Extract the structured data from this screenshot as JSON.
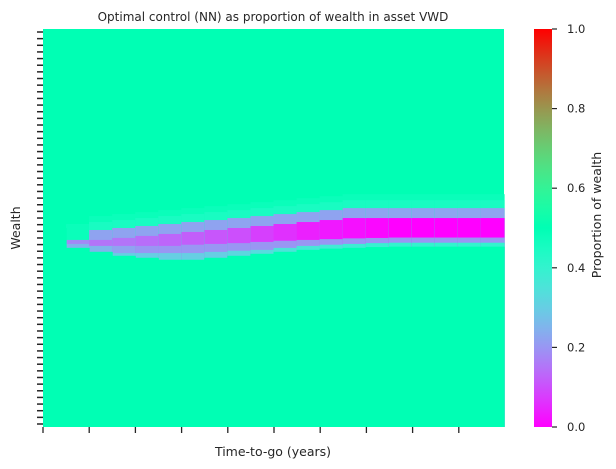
{
  "chart_data": {
    "type": "heatmap",
    "title": "Optimal control (NN) as proportion of wealth in asset VWD",
    "xlabel": "Time-to-go (years)",
    "ylabel": "Wealth",
    "colorbar": {
      "label": "Proportion of wealth",
      "range": [
        0,
        1
      ],
      "ticks": [
        "0.0",
        "0.2",
        "0.4",
        "0.6",
        "0.8",
        "1.0"
      ],
      "colormap": "rainbow"
    },
    "background_value": 0.5,
    "x_tick_count": 11,
    "y_tick_count": 60,
    "columns": [
      {
        "bands": [
          [
            0.5,
            0.5
          ]
        ]
      },
      {
        "bands": [
          [
            0.51,
            0.48
          ],
          [
            0.47,
            0.18
          ],
          [
            0.46,
            0.25
          ],
          [
            0.45,
            0.47
          ]
        ]
      },
      {
        "bands": [
          [
            0.53,
            0.48
          ],
          [
            0.515,
            0.45
          ],
          [
            0.495,
            0.22
          ],
          [
            0.47,
            0.15
          ],
          [
            0.455,
            0.25
          ],
          [
            0.44,
            0.47
          ]
        ]
      },
      {
        "bands": [
          [
            0.535,
            0.48
          ],
          [
            0.52,
            0.45
          ],
          [
            0.5,
            0.22
          ],
          [
            0.475,
            0.15
          ],
          [
            0.455,
            0.22
          ],
          [
            0.437,
            0.3
          ],
          [
            0.43,
            0.47
          ]
        ]
      },
      {
        "bands": [
          [
            0.54,
            0.48
          ],
          [
            0.525,
            0.45
          ],
          [
            0.505,
            0.22
          ],
          [
            0.48,
            0.14
          ],
          [
            0.455,
            0.2
          ],
          [
            0.437,
            0.3
          ],
          [
            0.425,
            0.47
          ]
        ]
      },
      {
        "bands": [
          [
            0.545,
            0.48
          ],
          [
            0.53,
            0.45
          ],
          [
            0.51,
            0.22
          ],
          [
            0.485,
            0.13
          ],
          [
            0.455,
            0.2
          ],
          [
            0.437,
            0.3
          ],
          [
            0.42,
            0.47
          ]
        ]
      },
      {
        "bands": [
          [
            0.55,
            0.48
          ],
          [
            0.535,
            0.45
          ],
          [
            0.515,
            0.22
          ],
          [
            0.49,
            0.12
          ],
          [
            0.458,
            0.2
          ],
          [
            0.437,
            0.3
          ],
          [
            0.42,
            0.47
          ]
        ]
      },
      {
        "bands": [
          [
            0.555,
            0.48
          ],
          [
            0.54,
            0.45
          ],
          [
            0.52,
            0.22
          ],
          [
            0.495,
            0.11
          ],
          [
            0.46,
            0.2
          ],
          [
            0.44,
            0.3
          ],
          [
            0.425,
            0.47
          ]
        ]
      },
      {
        "bands": [
          [
            0.56,
            0.48
          ],
          [
            0.545,
            0.45
          ],
          [
            0.525,
            0.22
          ],
          [
            0.5,
            0.1
          ],
          [
            0.462,
            0.2
          ],
          [
            0.443,
            0.32
          ],
          [
            0.43,
            0.47
          ]
        ]
      },
      {
        "bands": [
          [
            0.565,
            0.48
          ],
          [
            0.55,
            0.45
          ],
          [
            0.53,
            0.22
          ],
          [
            0.505,
            0.08
          ],
          [
            0.465,
            0.2
          ],
          [
            0.445,
            0.33
          ],
          [
            0.435,
            0.47
          ]
        ]
      },
      {
        "bands": [
          [
            0.57,
            0.48
          ],
          [
            0.555,
            0.45
          ],
          [
            0.535,
            0.22
          ],
          [
            0.51,
            0.06
          ],
          [
            0.468,
            0.2
          ],
          [
            0.45,
            0.35
          ],
          [
            0.44,
            0.47
          ]
        ]
      },
      {
        "bands": [
          [
            0.575,
            0.48
          ],
          [
            0.56,
            0.45
          ],
          [
            0.54,
            0.22
          ],
          [
            0.515,
            0.04
          ],
          [
            0.47,
            0.2
          ],
          [
            0.455,
            0.36
          ],
          [
            0.445,
            0.47
          ]
        ]
      },
      {
        "bands": [
          [
            0.58,
            0.48
          ],
          [
            0.565,
            0.45
          ],
          [
            0.545,
            0.22
          ],
          [
            0.52,
            0.03
          ],
          [
            0.472,
            0.2
          ],
          [
            0.458,
            0.37
          ],
          [
            0.448,
            0.47
          ]
        ]
      },
      {
        "bands": [
          [
            0.585,
            0.48
          ],
          [
            0.57,
            0.45
          ],
          [
            0.55,
            0.22
          ],
          [
            0.525,
            0.02
          ],
          [
            0.474,
            0.2
          ],
          [
            0.46,
            0.38
          ],
          [
            0.45,
            0.47
          ]
        ]
      },
      {
        "bands": [
          [
            0.585,
            0.48
          ],
          [
            0.57,
            0.45
          ],
          [
            0.55,
            0.22
          ],
          [
            0.525,
            0.01
          ],
          [
            0.475,
            0.2
          ],
          [
            0.462,
            0.39
          ],
          [
            0.452,
            0.47
          ]
        ]
      },
      {
        "bands": [
          [
            0.585,
            0.48
          ],
          [
            0.57,
            0.45
          ],
          [
            0.55,
            0.22
          ],
          [
            0.525,
            0.0
          ],
          [
            0.476,
            0.2
          ],
          [
            0.463,
            0.4
          ],
          [
            0.453,
            0.47
          ]
        ]
      },
      {
        "bands": [
          [
            0.585,
            0.48
          ],
          [
            0.57,
            0.45
          ],
          [
            0.55,
            0.22
          ],
          [
            0.525,
            0.0
          ],
          [
            0.476,
            0.2
          ],
          [
            0.463,
            0.4
          ],
          [
            0.453,
            0.47
          ]
        ]
      },
      {
        "bands": [
          [
            0.585,
            0.48
          ],
          [
            0.57,
            0.45
          ],
          [
            0.55,
            0.22
          ],
          [
            0.525,
            0.0
          ],
          [
            0.476,
            0.2
          ],
          [
            0.463,
            0.4
          ],
          [
            0.453,
            0.47
          ]
        ]
      },
      {
        "bands": [
          [
            0.585,
            0.48
          ],
          [
            0.57,
            0.45
          ],
          [
            0.55,
            0.22
          ],
          [
            0.525,
            0.0
          ],
          [
            0.476,
            0.2
          ],
          [
            0.463,
            0.4
          ],
          [
            0.453,
            0.47
          ]
        ]
      },
      {
        "bands": [
          [
            0.585,
            0.48
          ],
          [
            0.57,
            0.45
          ],
          [
            0.55,
            0.22
          ],
          [
            0.525,
            0.0
          ],
          [
            0.476,
            0.2
          ],
          [
            0.463,
            0.4
          ],
          [
            0.453,
            0.47
          ]
        ]
      }
    ]
  }
}
